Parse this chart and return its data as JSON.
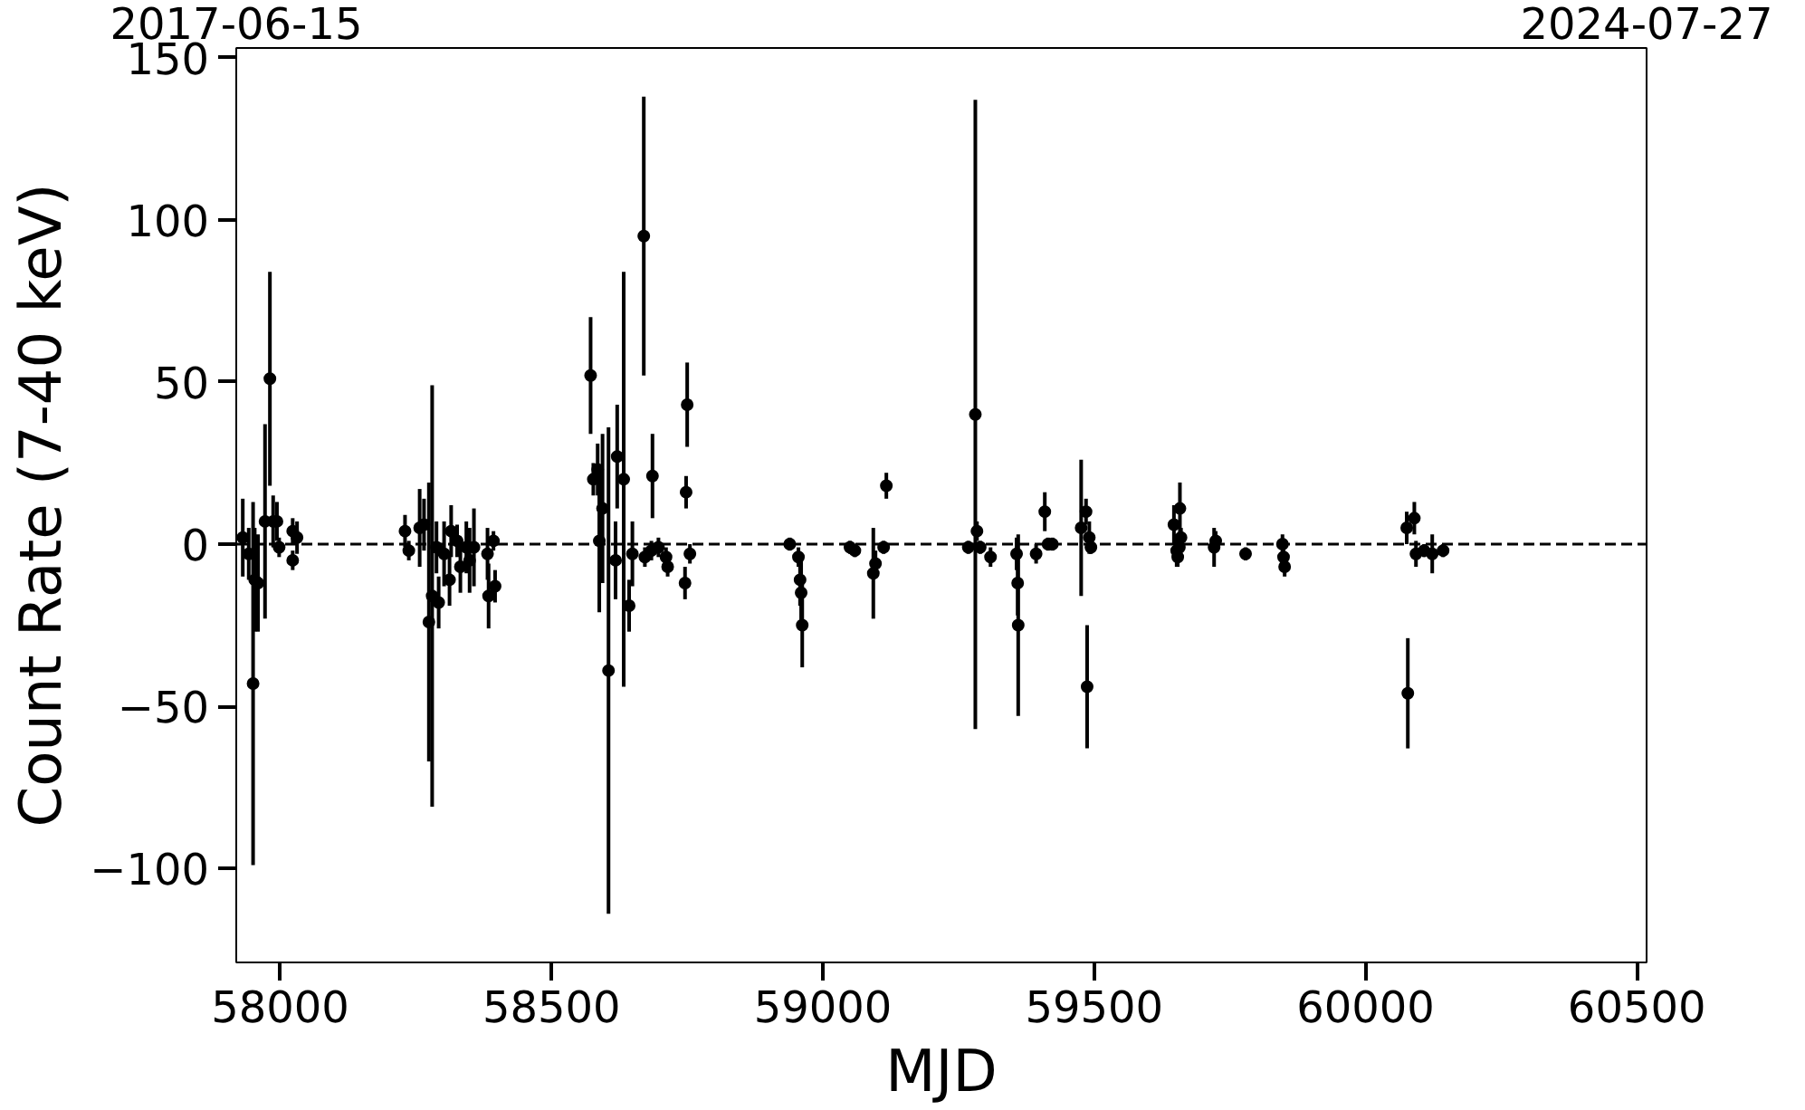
{
  "chart_data": {
    "type": "scatter",
    "xlabel": "MJD",
    "ylabel": "Count Rate (7-40 keV)",
    "xlim": [
      57919,
      60518
    ],
    "ylim": [
      -129,
      153
    ],
    "xticks": [
      58000,
      58500,
      59000,
      59500,
      60000,
      60500
    ],
    "yticks": [
      -100,
      -50,
      0,
      50,
      100,
      150
    ],
    "x2lim": [
      "2017-06-15",
      "2024-07-27"
    ],
    "x2ticks": [
      "2017-06-15",
      "2024-07-27"
    ],
    "grid": false,
    "marker": "circle",
    "ref_lines": [
      {
        "axis": "y",
        "value": 0,
        "color": "#000000",
        "line_style": "dashed"
      }
    ],
    "series": [
      {
        "color": "#000000",
        "x": [
          57931,
          57942,
          57950,
          57953,
          57959,
          57972,
          57981,
          57987,
          57994,
          57998,
          58023,
          58023,
          58031,
          58230,
          58237,
          58257,
          58265,
          58274,
          58280,
          58288,
          58292,
          58302,
          58312,
          58315,
          58326,
          58332,
          58343,
          58349,
          58357,
          58382,
          58384,
          58393,
          58396,
          58572,
          58577,
          58585,
          58588,
          58594,
          58605,
          58621,
          58633,
          58618,
          58643,
          58649,
          58670,
          58672,
          58686,
          58684,
          58697,
          58711,
          58714,
          58746,
          58750,
          58748,
          58755,
          58939,
          58955,
          58958,
          58960,
          58962,
          59050,
          59059,
          59093,
          59097,
          59112,
          59117,
          59268,
          59281,
          59284,
          59290,
          59309,
          59357,
          59359,
          59360,
          59393,
          59409,
          59415,
          59423,
          59476,
          59485,
          59491,
          59487,
          59494,
          59647,
          59652,
          59658,
          59660,
          59654,
          59657,
          59721,
          59724,
          59779,
          59847,
          59849,
          59851,
          60076,
          60090,
          60078,
          60093,
          60108,
          60123,
          60143
        ],
        "values": [
          2,
          -3,
          -43,
          -11,
          -12,
          7,
          51,
          7,
          7,
          -1,
          4,
          -5,
          2,
          4,
          -2,
          5,
          6,
          -24,
          -16,
          -1,
          -18,
          -3,
          -11,
          4,
          1,
          -7,
          -1,
          -5,
          -1,
          -3,
          -16,
          1,
          -13,
          52,
          20,
          23,
          1,
          11,
          -39,
          27,
          20,
          -5,
          -19,
          -3,
          95,
          -4,
          21,
          -2,
          -1,
          -4,
          -7,
          -12,
          43,
          16,
          -3,
          0,
          -4,
          -11,
          -15,
          -25,
          -1,
          -2,
          -9,
          -6,
          -1,
          18,
          -1,
          40,
          4,
          -1,
          -4,
          -3,
          -12,
          -25,
          -3,
          10,
          0,
          0,
          5,
          10,
          2,
          -44,
          -1,
          6,
          -2,
          11,
          2,
          -4,
          -1,
          -1,
          1,
          -3,
          0,
          -4,
          -7,
          5,
          8,
          -46,
          -3,
          -2,
          -3,
          -2
        ],
        "errors": [
          12,
          8,
          56,
          16,
          15,
          30,
          33,
          8,
          6,
          3,
          4,
          3,
          5,
          5,
          3,
          12,
          8,
          43,
          65,
          8,
          8,
          10,
          8,
          8,
          5,
          8,
          8,
          10,
          12,
          8,
          10,
          3,
          5,
          18,
          5,
          8,
          22,
          23,
          75,
          16,
          64,
          12,
          8,
          10,
          43,
          3,
          13,
          3,
          3,
          3,
          3,
          5,
          13,
          5,
          3,
          2,
          3,
          8,
          10,
          13,
          2,
          2,
          14,
          4,
          2,
          4,
          2,
          97,
          3,
          2,
          3,
          5,
          10,
          28,
          3,
          6,
          2,
          2,
          21,
          4,
          5,
          19,
          2,
          6,
          5,
          8,
          3,
          3,
          3,
          6,
          3,
          2,
          3,
          3,
          3,
          5,
          5,
          17,
          4,
          2,
          6,
          2
        ]
      }
    ]
  }
}
